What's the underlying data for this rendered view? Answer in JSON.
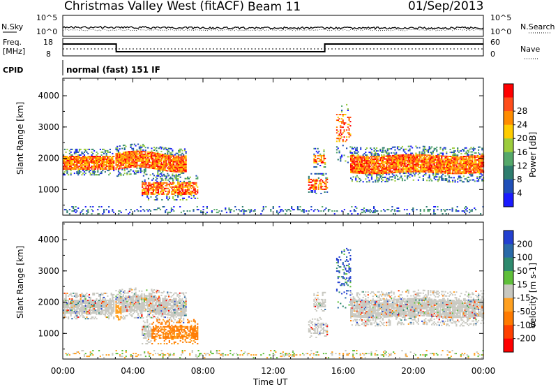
{
  "header": {
    "station": "Christmas Valley West (fitACF)",
    "beam": "Beam 11",
    "date": "01/Sep/2013"
  },
  "top_panels": {
    "nsky_label": "N.Sky",
    "nsky_ticks": [
      "10^5",
      "10^0"
    ],
    "nsearch_label": "N.Search",
    "nsearch_ticks": [
      "10^5",
      "10^0"
    ],
    "freq_label_1": "Freq.",
    "freq_label_2": "[MHz]",
    "freq_ticks": [
      "18",
      "8"
    ],
    "nave_label": "Nave",
    "nave_ticks": [
      "60",
      "0"
    ],
    "cpid_label": "CPID",
    "cpid_text": "normal (fast) 151 IF"
  },
  "chart_data": [
    {
      "type": "heatmap",
      "name": "power",
      "ylabel": "Slant Range [km]",
      "xlabel": "Time UT",
      "x_ticks": [
        "00:00",
        "04:00",
        "08:00",
        "12:00",
        "16:00",
        "20:00",
        "00:00"
      ],
      "xlim_hours": [
        0,
        24
      ],
      "y_ticks": [
        "1000",
        "2000",
        "3000",
        "4000"
      ],
      "ylim": [
        180,
        4560
      ],
      "colorbar_label": "Power [dB]",
      "colorbar_ticks": [
        "4",
        "8",
        "12",
        "16",
        "20",
        "24",
        "28"
      ],
      "colors": [
        "#1a1aff",
        "#1f4fb8",
        "#2e7d6e",
        "#55a86a",
        "#9ccc3c",
        "#ffcc00",
        "#ff8c00",
        "#ff4d1a",
        "#ff0000"
      ]
    },
    {
      "type": "heatmap",
      "name": "velocity",
      "ylabel": "Slant Range [km]",
      "xlabel": "Time UT",
      "x_ticks": [
        "00:00",
        "04:00",
        "08:00",
        "12:00",
        "16:00",
        "20:00",
        "00:00"
      ],
      "xlim_hours": [
        0,
        24
      ],
      "y_ticks": [
        "1000",
        "2000",
        "3000",
        "4000"
      ],
      "ylim": [
        180,
        4560
      ],
      "colorbar_label": "Velocity [m s-1]",
      "colorbar_ticks": [
        "200",
        "100",
        "50",
        "15",
        "-15",
        "-50",
        "-100",
        "-200"
      ],
      "colors": [
        "#2340d0",
        "#2a6aa8",
        "#2e8a6e",
        "#5fbf3a",
        "#c8c8c0",
        "#ffa020",
        "#ff7a00",
        "#ff4000",
        "#ff0000"
      ]
    }
  ],
  "colors": {
    "ground_scatter_gray": "#c8c8c0",
    "axis": "#000000"
  }
}
